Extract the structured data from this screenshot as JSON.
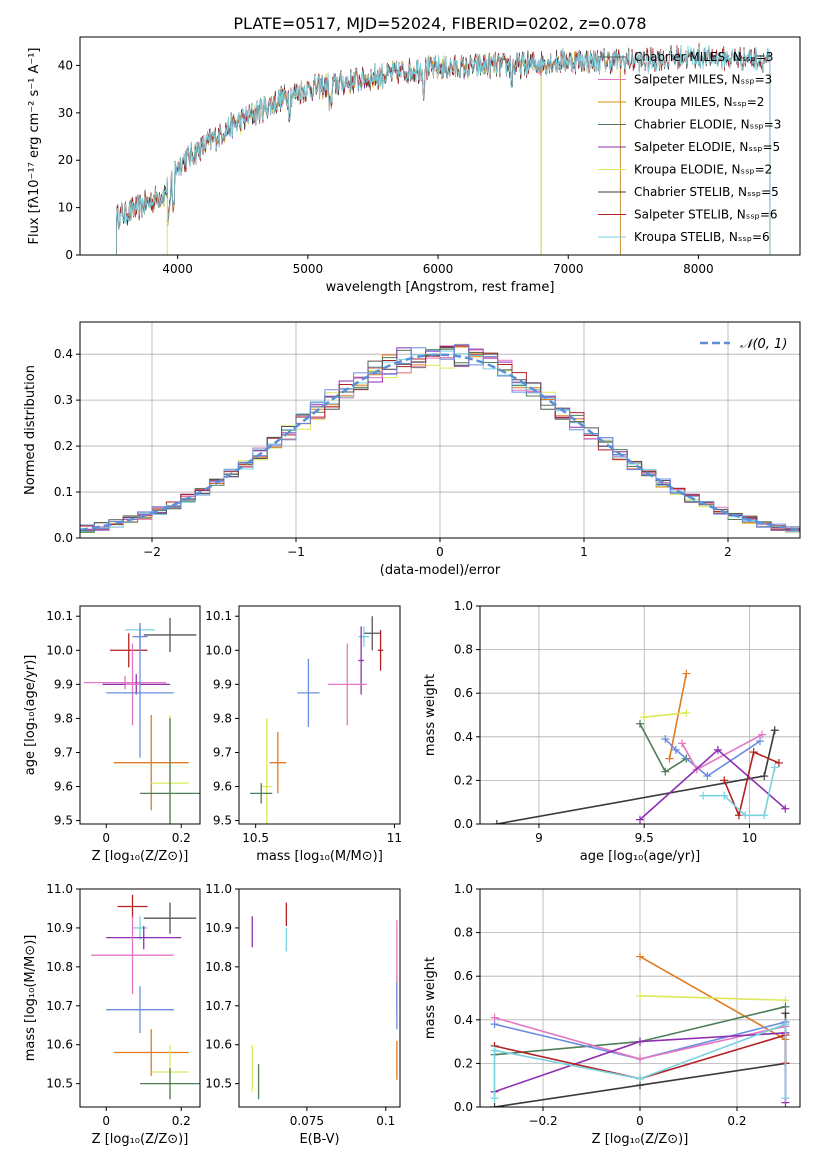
{
  "title": "PLATE=0517, MJD=52024, FIBERID=0202, z=0.078",
  "colors": [
    "#555555",
    "#e377c2",
    "#d4900a",
    "#4e7d57",
    "#8e2fb0",
    "#dbe85a",
    "#3a3a3a",
    "#b22222",
    "#78d2e0"
  ],
  "colors_extra": [
    "#6b8de0",
    "#e07b20"
  ],
  "chart_data": [
    {
      "id": "spectrum",
      "type": "line",
      "title": "PLATE=0517, MJD=52024, FIBERID=0202, z=0.078",
      "xlabel": "wavelength [Angstrom, rest frame]",
      "ylabel": "Flux [fλ10⁻¹⁷ erg cm⁻² s⁻¹ A⁻¹]",
      "xlim": [
        3250,
        8780
      ],
      "ylim": [
        0,
        46
      ],
      "xticks": [
        4000,
        5000,
        6000,
        7000,
        8000
      ],
      "yticks": [
        0,
        10,
        20,
        30,
        40
      ],
      "legend_position": "top-right",
      "grid": false,
      "continuum": {
        "x": [
          3530,
          3700,
          3900,
          4000,
          4200,
          4400,
          4600,
          4800,
          5000,
          5200,
          5400,
          5600,
          5800,
          6000,
          6200,
          6400,
          6600,
          6800,
          7000,
          7200,
          7400,
          7600,
          7800,
          8000,
          8200,
          8400,
          8550
        ],
        "y": [
          8,
          10,
          13,
          19,
          23,
          27,
          30,
          33,
          35,
          36,
          37,
          38,
          39,
          39.5,
          39.5,
          40,
          40,
          40.5,
          41,
          41,
          41,
          41,
          41.5,
          42,
          41.5,
          41.5,
          41
        ]
      },
      "series": [
        {
          "name": "Chabrier MILES, Nₛₛₚ=3",
          "xmax": 7400
        },
        {
          "name": "Salpeter MILES, Nₛₛₚ=3",
          "xmax": 7400
        },
        {
          "name": "Kroupa MILES, Nₛₛₚ=2",
          "xmax": 7400
        },
        {
          "name": "Chabrier ELODIE, Nₛₛₚ=3",
          "xmax": 6790
        },
        {
          "name": "Salpeter ELODIE, Nₛₛₚ=5",
          "xmax": 6790
        },
        {
          "name": "Kroupa ELODIE, Nₛₛₚ=2",
          "xmax": 6790
        },
        {
          "name": "Chabrier STELIB, Nₛₛₚ=5",
          "xmax": 8550
        },
        {
          "name": "Salpeter STELIB, Nₛₛₚ=6",
          "xmax": 8550
        },
        {
          "name": "Kroupa STELIB, Nₛₛₚ=6",
          "xmax": 8550
        }
      ]
    },
    {
      "id": "residuals",
      "type": "line",
      "xlabel": "(data-model)/error",
      "ylabel": "Normed distribution",
      "xlim": [
        -2.5,
        2.5
      ],
      "ylim": [
        0,
        0.47
      ],
      "xticks": [
        -2,
        -1,
        0,
        1,
        2
      ],
      "yticks": [
        0.0,
        0.1,
        0.2,
        0.3,
        0.4
      ],
      "grid": true,
      "legend": "𝒩(0, 1)",
      "legend_position": "top-right",
      "bin_width": 0.1,
      "series_colors": [
        "#dbe85a",
        "#e07b20",
        "#4e7d57",
        "#8e2fb0",
        "#e377c2",
        "#b22222",
        "#78d2e0",
        "#555555",
        "#6b8de0"
      ]
    },
    {
      "id": "age-vs-Z",
      "type": "scatter",
      "xlabel": "Z [log₁₀(Z/Z⊙)]",
      "ylabel": "age  [log₁₀(age/yr)]",
      "xlim": [
        -0.07,
        0.25
      ],
      "ylim": [
        9.49,
        10.13
      ],
      "xticks": [
        0.0,
        0.2
      ],
      "yticks": [
        9.5,
        9.6,
        9.7,
        9.8,
        9.9,
        10.0,
        10.1
      ],
      "points": [
        {
          "x": 0.09,
          "y": 10.06,
          "xerr": 0.04,
          "yerr": 0.02,
          "color": "#78d2e0"
        },
        {
          "x": 0.17,
          "y": 10.045,
          "xerr": 0.07,
          "yerr": 0.05,
          "color": "#555555"
        },
        {
          "x": 0.09,
          "y": 10.04,
          "xerr": 0.02,
          "yerr": 0.04,
          "color": "#6b8de0"
        },
        {
          "x": 0.06,
          "y": 10.0,
          "xerr": 0.05,
          "yerr": 0.05,
          "color": "#b22222"
        },
        {
          "x": 0.05,
          "y": 9.905,
          "xerr": 0.11,
          "yerr": 0.02,
          "color": "#e377c2"
        },
        {
          "x": 0.08,
          "y": 9.9,
          "xerr": 0.09,
          "yerr": 0.03,
          "color": "#8e2fb0"
        },
        {
          "x": 0.07,
          "y": 9.9,
          "xerr": 0.02,
          "yerr": 0.12,
          "color": "#e377c2"
        },
        {
          "x": 0.09,
          "y": 9.875,
          "xerr": 0.09,
          "yerr": 0.19,
          "color": "#6b8de0"
        },
        {
          "x": 0.12,
          "y": 9.67,
          "xerr": 0.1,
          "yerr": 0.14,
          "color": "#e07b20"
        },
        {
          "x": 0.17,
          "y": 9.61,
          "xerr": 0.05,
          "yerr": 0.2,
          "color": "#dbe85a"
        },
        {
          "x": 0.17,
          "y": 9.58,
          "xerr": 0.08,
          "yerr": 0.22,
          "color": "#4e7d57"
        }
      ]
    },
    {
      "id": "age-vs-mass",
      "type": "scatter",
      "xlabel": "mass [log₁₀(M/M⊙)]",
      "ylabel": "",
      "xlim": [
        10.44,
        11.02
      ],
      "ylim": [
        9.49,
        10.13
      ],
      "xticks": [
        10.5,
        11.0
      ],
      "yticks": [
        9.5,
        9.6,
        9.7,
        9.8,
        9.9,
        10.0,
        10.1
      ],
      "points": [
        {
          "x": 10.92,
          "y": 10.05,
          "xerr": 0.03,
          "yerr": 0.05,
          "color": "#555555"
        },
        {
          "x": 10.89,
          "y": 10.04,
          "xerr": 0.02,
          "yerr": 0.03,
          "color": "#78d2e0"
        },
        {
          "x": 10.95,
          "y": 10.0,
          "xerr": 0.01,
          "yerr": 0.06,
          "color": "#b22222"
        },
        {
          "x": 10.88,
          "y": 9.97,
          "xerr": 0.01,
          "yerr": 0.1,
          "color": "#8e2fb0"
        },
        {
          "x": 10.83,
          "y": 9.9,
          "xerr": 0.07,
          "yerr": 0.12,
          "color": "#e377c2"
        },
        {
          "x": 10.69,
          "y": 9.875,
          "xerr": 0.04,
          "yerr": 0.1,
          "color": "#6b8de0"
        },
        {
          "x": 10.58,
          "y": 9.67,
          "xerr": 0.03,
          "yerr": 0.09,
          "color": "#e07b20"
        },
        {
          "x": 10.54,
          "y": 9.6,
          "xerr": 0.02,
          "yerr": 0.2,
          "color": "#dbe85a"
        },
        {
          "x": 10.52,
          "y": 9.58,
          "xerr": 0.04,
          "yerr": 0.03,
          "color": "#4e7d57"
        }
      ]
    },
    {
      "id": "weight-vs-age",
      "type": "line",
      "xlabel": "age  [log₁₀(age/yr)]",
      "ylabel": "mass weight",
      "xlim": [
        8.72,
        10.24
      ],
      "ylim": [
        0,
        1
      ],
      "xticks": [
        9.0,
        9.5,
        10.0
      ],
      "yticks": [
        0.0,
        0.2,
        0.4,
        0.6,
        0.8,
        1.0
      ],
      "grid": true,
      "series": [
        {
          "color": "#3a3a3a",
          "x": [
            8.8,
            10.07,
            10.12
          ],
          "y": [
            0.0,
            0.22,
            0.43
          ]
        },
        {
          "color": "#e07b20",
          "x": [
            9.62,
            9.7
          ],
          "y": [
            0.3,
            0.69
          ]
        },
        {
          "color": "#dbe85a",
          "x": [
            9.5,
            9.7
          ],
          "y": [
            0.49,
            0.51
          ]
        },
        {
          "color": "#4e7d57",
          "x": [
            9.48,
            9.6,
            9.7
          ],
          "y": [
            0.46,
            0.24,
            0.3
          ]
        },
        {
          "color": "#6b8de0",
          "x": [
            9.6,
            9.65,
            9.8,
            10.05
          ],
          "y": [
            0.39,
            0.34,
            0.22,
            0.38
          ]
        },
        {
          "color": "#e377c2",
          "x": [
            9.68,
            9.75,
            10.06
          ],
          "y": [
            0.37,
            0.25,
            0.41
          ]
        },
        {
          "color": "#8e2fb0",
          "x": [
            9.48,
            9.85,
            10.17
          ],
          "y": [
            0.02,
            0.34,
            0.07
          ]
        },
        {
          "color": "#b22222",
          "x": [
            9.88,
            9.95,
            10.02,
            10.14
          ],
          "y": [
            0.2,
            0.04,
            0.33,
            0.28
          ]
        },
        {
          "color": "#78d2e0",
          "x": [
            9.78,
            9.88,
            9.98,
            10.07,
            10.12
          ],
          "y": [
            0.13,
            0.13,
            0.04,
            0.04,
            0.26
          ]
        }
      ]
    },
    {
      "id": "mass-vs-Z",
      "type": "scatter",
      "xlabel": "Z [log₁₀(Z/Z⊙)]",
      "ylabel": "mass [log₁₀(M/M⊙)]",
      "xlim": [
        -0.07,
        0.25
      ],
      "ylim": [
        10.44,
        11.0
      ],
      "xticks": [
        0.0,
        0.2
      ],
      "yticks": [
        10.5,
        10.6,
        10.7,
        10.8,
        10.9,
        11.0
      ],
      "points": [
        {
          "x": 0.07,
          "y": 10.955,
          "xerr": 0.04,
          "yerr": 0.03,
          "color": "#b22222"
        },
        {
          "x": 0.17,
          "y": 10.925,
          "xerr": 0.07,
          "yerr": 0.04,
          "color": "#555555"
        },
        {
          "x": 0.09,
          "y": 10.9,
          "xerr": 0.02,
          "yerr": 0.03,
          "color": "#78d2e0"
        },
        {
          "x": 0.1,
          "y": 10.875,
          "xerr": 0.1,
          "yerr": 0.03,
          "color": "#8e2fb0"
        },
        {
          "x": 0.07,
          "y": 10.83,
          "xerr": 0.11,
          "yerr": 0.1,
          "color": "#e377c2"
        },
        {
          "x": 0.09,
          "y": 10.69,
          "xerr": 0.09,
          "yerr": 0.06,
          "color": "#6b8de0"
        },
        {
          "x": 0.12,
          "y": 10.58,
          "xerr": 0.1,
          "yerr": 0.06,
          "color": "#e07b20"
        },
        {
          "x": 0.17,
          "y": 10.53,
          "xerr": 0.05,
          "yerr": 0.07,
          "color": "#dbe85a"
        },
        {
          "x": 0.17,
          "y": 10.5,
          "xerr": 0.08,
          "yerr": 0.04,
          "color": "#4e7d57"
        }
      ]
    },
    {
      "id": "mass-vs-EBV",
      "type": "scatter",
      "xlabel": "E(B-V)",
      "ylabel": "",
      "xlim": [
        0.0535,
        0.1045
      ],
      "ylim": [
        10.44,
        11.0
      ],
      "xticks": [
        0.075,
        0.1
      ],
      "yticks": [
        10.5,
        10.6,
        10.7,
        10.8,
        10.9,
        11.0
      ],
      "points": [
        {
          "x": 0.0685,
          "y": 10.935,
          "xerr": 0,
          "yerr": 0.03,
          "color": "#b22222"
        },
        {
          "x": 0.0685,
          "y": 10.87,
          "xerr": 0,
          "yerr": 0.03,
          "color": "#78d2e0"
        },
        {
          "x": 0.0577,
          "y": 10.89,
          "xerr": 0,
          "yerr": 0.04,
          "color": "#8e2fb0"
        },
        {
          "x": 0.1035,
          "y": 10.8,
          "xerr": 0,
          "yerr": 0.12,
          "color": "#e377c2"
        },
        {
          "x": 0.1035,
          "y": 10.7,
          "xerr": 0,
          "yerr": 0.06,
          "color": "#6b8de0"
        },
        {
          "x": 0.1035,
          "y": 10.56,
          "xerr": 0,
          "yerr": 0.05,
          "color": "#e07b20"
        },
        {
          "x": 0.0577,
          "y": 10.54,
          "xerr": 0,
          "yerr": 0.06,
          "color": "#dbe85a"
        },
        {
          "x": 0.0597,
          "y": 10.505,
          "xerr": 0,
          "yerr": 0.045,
          "color": "#4e7d57"
        }
      ]
    },
    {
      "id": "weight-vs-Z",
      "type": "line",
      "xlabel": "Z [log₁₀(Z/Z⊙)]",
      "ylabel": "mass weight",
      "xlim": [
        -0.33,
        0.33
      ],
      "ylim": [
        0,
        1
      ],
      "xticks": [
        -0.2,
        0.0,
        0.2
      ],
      "yticks": [
        0.0,
        0.2,
        0.4,
        0.6,
        0.8,
        1.0
      ],
      "grid": true,
      "series": [
        {
          "color": "#3a3a3a",
          "x": [
            -0.3,
            0.0,
            0.3,
            0.3
          ],
          "y": [
            0.0,
            0.1,
            0.2,
            0.43
          ]
        },
        {
          "color": "#e07b20",
          "x": [
            0.0,
            0.3
          ],
          "y": [
            0.69,
            0.31
          ]
        },
        {
          "color": "#dbe85a",
          "x": [
            0.0,
            0.3
          ],
          "y": [
            0.51,
            0.49
          ]
        },
        {
          "color": "#4e7d57",
          "x": [
            -0.3,
            0.0,
            0.3
          ],
          "y": [
            0.24,
            0.3,
            0.46
          ]
        },
        {
          "color": "#6b8de0",
          "x": [
            -0.3,
            0.0,
            0.3
          ],
          "y": [
            0.38,
            0.22,
            0.39
          ]
        },
        {
          "color": "#e377c2",
          "x": [
            -0.3,
            0.0,
            0.3
          ],
          "y": [
            0.41,
            0.22,
            0.37
          ]
        },
        {
          "color": "#8e2fb0",
          "x": [
            -0.3,
            0.0,
            0.3,
            0.3
          ],
          "y": [
            0.07,
            0.3,
            0.34,
            0.02
          ]
        },
        {
          "color": "#b22222",
          "x": [
            -0.3,
            0.0,
            0.3,
            0.3
          ],
          "y": [
            0.28,
            0.13,
            0.33,
            0.2
          ]
        },
        {
          "color": "#78d2e0",
          "x": [
            -0.3,
            -0.3,
            0.0,
            0.3,
            0.3
          ],
          "y": [
            0.04,
            0.26,
            0.13,
            0.38,
            0.04
          ]
        }
      ]
    }
  ]
}
